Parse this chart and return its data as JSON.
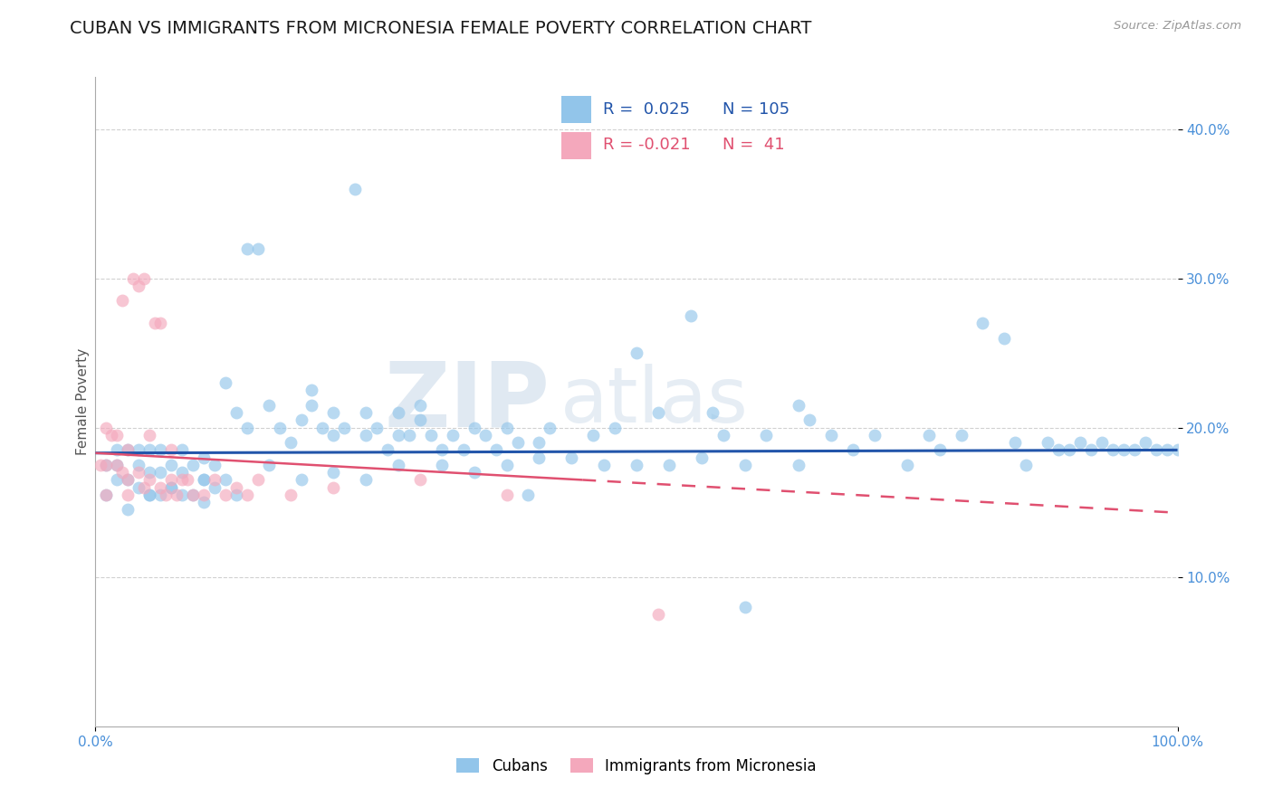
{
  "title": "CUBAN VS IMMIGRANTS FROM MICRONESIA FEMALE POVERTY CORRELATION CHART",
  "source": "Source: ZipAtlas.com",
  "ylabel": "Female Poverty",
  "xlim": [
    0.0,
    1.0
  ],
  "ylim": [
    0.0,
    0.435
  ],
  "ytick_vals": [
    0.1,
    0.2,
    0.3,
    0.4
  ],
  "ytick_labels": [
    "10.0%",
    "20.0%",
    "30.0%",
    "40.0%"
  ],
  "xtick_vals": [
    0.0,
    1.0
  ],
  "xtick_labels": [
    "0.0%",
    "100.0%"
  ],
  "grid_color": "#cccccc",
  "bg_color": "#ffffff",
  "title_fontsize": 14,
  "tick_fontsize": 11,
  "ylabel_fontsize": 11,
  "tick_color": "#4a90d9",
  "color_cubans": "#92c5ea",
  "color_micronesia": "#f4a8bc",
  "color_trend_cubans": "#2255aa",
  "color_trend_micronesia": "#e05070",
  "legend_r1": "R =  0.025",
  "legend_n1": "N = 105",
  "legend_r2": "R = -0.021",
  "legend_n2": "N =  41",
  "label_cubans": "Cubans",
  "label_micronesia": "Immigrants from Micronesia",
  "watermark_zip": "ZIP",
  "watermark_atlas": "atlas",
  "source_color": "#999999",
  "scatter_size": 100,
  "scatter_alpha": 0.65
}
